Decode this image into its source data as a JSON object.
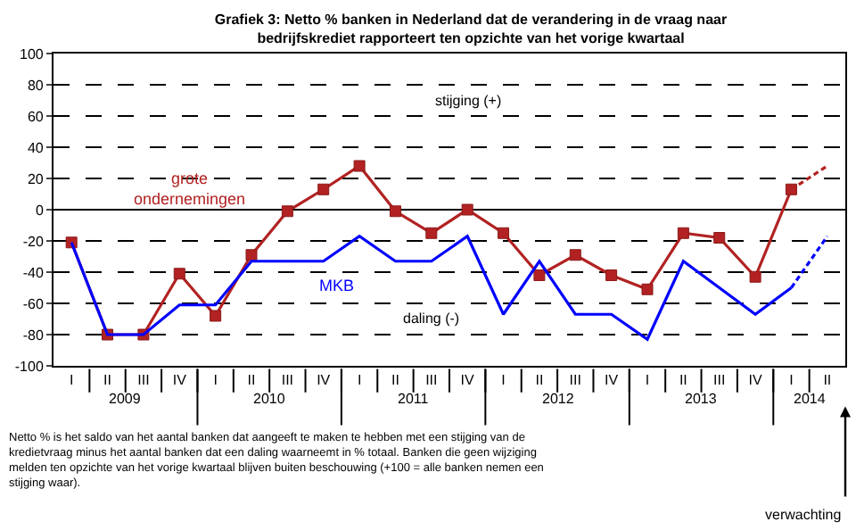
{
  "chart_data": {
    "type": "line",
    "title": "Grafiek 3: Netto % banken in Nederland dat de verandering in de vraag naar\nbedrijfskrediet rapporteert ten opzichte van het vorige kwartaal",
    "categories": [
      "I",
      "II",
      "III",
      "IV",
      "I",
      "II",
      "III",
      "IV",
      "I",
      "II",
      "III",
      "IV",
      "I",
      "II",
      "III",
      "IV",
      "I",
      "II",
      "III",
      "IV",
      "I",
      "II"
    ],
    "series": [
      {
        "name": "grote ondernemingen",
        "color": "#b22222",
        "marker": "square",
        "line_style": "solid",
        "values": [
          -21,
          -80,
          -80,
          -41,
          -68,
          -29,
          -1,
          13,
          28,
          -1,
          -15,
          0,
          -15,
          -42,
          -29,
          -42,
          -51,
          -15,
          -18,
          -43,
          13,
          null
        ]
      },
      {
        "color": "#b22222",
        "line_style": "dashed",
        "values": [
          null,
          null,
          null,
          null,
          null,
          null,
          null,
          null,
          null,
          null,
          null,
          null,
          null,
          null,
          null,
          null,
          null,
          null,
          null,
          null,
          13,
          28
        ]
      },
      {
        "name": "MKB",
        "color": "#0000ff",
        "marker": "none",
        "line_style": "solid",
        "values": [
          -21,
          -80,
          -80,
          -61,
          -61,
          -33,
          -33,
          -33,
          -17,
          -33,
          -33,
          -17,
          -67,
          -33,
          -67,
          -67,
          -83,
          -33,
          -50,
          -67,
          -50,
          null
        ]
      },
      {
        "color": "#0000ff",
        "line_style": "dashed",
        "values": [
          null,
          null,
          null,
          null,
          null,
          null,
          null,
          null,
          null,
          null,
          null,
          null,
          null,
          null,
          null,
          null,
          null,
          null,
          null,
          null,
          -50,
          -17
        ]
      }
    ],
    "ylim": [
      -100,
      100
    ],
    "yticks": [
      -100,
      -80,
      -60,
      -40,
      -20,
      0,
      20,
      40,
      60,
      80,
      100
    ],
    "grid": "y",
    "annotations": [
      "2009",
      "2010",
      "2011",
      "2012",
      "2013",
      "2014",
      "stijging (+)",
      "daling (-)",
      "Netto % is het saldo van het aantal banken dat aangeeft te maken te hebben met een stijging van de\nkredietvraag minus het aantal banken dat een daling waarneemt in % totaal. Banken die geen wijziging\nmelden ten opzichte van het vorige kwartaal blijven buiten beschouwing (+100 = alle banken nemen een\nstijging waar).",
      "verwachting"
    ]
  }
}
